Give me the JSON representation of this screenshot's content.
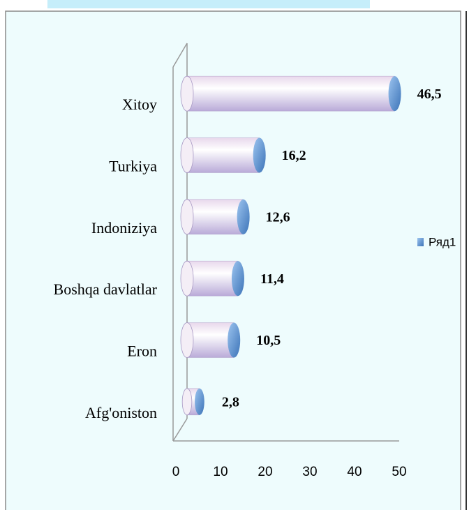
{
  "chart_data": {
    "type": "bar",
    "orientation": "horizontal",
    "categories": [
      "Xitoy",
      "Turkiya",
      "Indoniziya",
      "Boshqa davlatlar",
      "Eron",
      "Afg'oniston"
    ],
    "series": [
      {
        "name": "Ряд1",
        "color": "#6a9fd8",
        "values": [
          46.5,
          16.2,
          12.6,
          11.4,
          10.5,
          2.8
        ],
        "value_labels": [
          "46,5",
          "16,2",
          "12,6",
          "11,4",
          "10,5",
          "2,8"
        ]
      }
    ],
    "xlim": [
      0,
      50
    ],
    "xticks": [
      0,
      10,
      20,
      30,
      40,
      50
    ],
    "legend": "right"
  }
}
